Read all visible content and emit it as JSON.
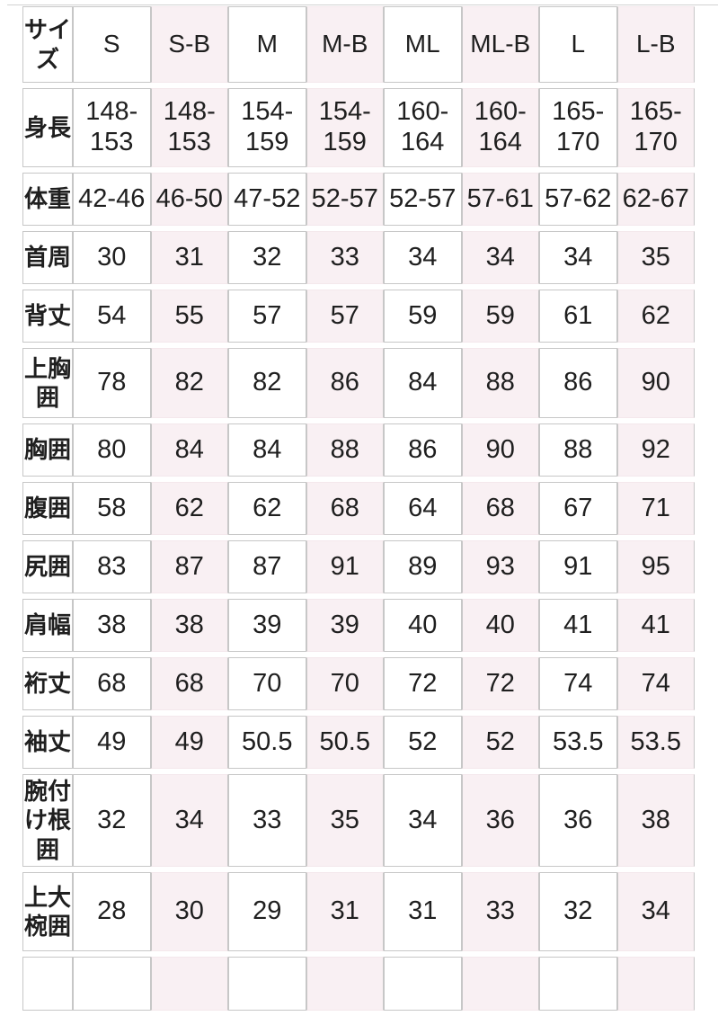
{
  "table": {
    "header": {
      "label": "サイズ",
      "sizes": [
        "S",
        "S-B",
        "M",
        "M-B",
        "ML",
        "ML-B",
        "L",
        "L-B"
      ]
    },
    "rows": [
      {
        "label": "身長",
        "values": [
          "148-153",
          "148-153",
          "154-159",
          "154-159",
          "160-164",
          "160-164",
          "165-170",
          "165-170"
        ]
      },
      {
        "label": "体重",
        "values": [
          "42-46",
          "46-50",
          "47-52",
          "52-57",
          "52-57",
          "57-61",
          "57-62",
          "62-67"
        ]
      },
      {
        "label": "首周",
        "values": [
          "30",
          "31",
          "32",
          "33",
          "34",
          "34",
          "34",
          "35"
        ]
      },
      {
        "label": "背丈",
        "values": [
          "54",
          "55",
          "57",
          "57",
          "59",
          "59",
          "61",
          "62"
        ]
      },
      {
        "label": "上胸囲",
        "values": [
          "78",
          "82",
          "82",
          "86",
          "84",
          "88",
          "86",
          "90"
        ]
      },
      {
        "label": "胸囲",
        "values": [
          "80",
          "84",
          "84",
          "88",
          "86",
          "90",
          "88",
          "92"
        ]
      },
      {
        "label": "腹囲",
        "values": [
          "58",
          "62",
          "62",
          "68",
          "64",
          "68",
          "67",
          "71"
        ]
      },
      {
        "label": "尻囲",
        "values": [
          "83",
          "87",
          "87",
          "91",
          "89",
          "93",
          "91",
          "95"
        ]
      },
      {
        "label": "肩幅",
        "values": [
          "38",
          "38",
          "39",
          "39",
          "40",
          "40",
          "41",
          "41"
        ]
      },
      {
        "label": "裄丈",
        "values": [
          "68",
          "68",
          "70",
          "70",
          "72",
          "72",
          "74",
          "74"
        ]
      },
      {
        "label": "袖丈",
        "values": [
          "49",
          "49",
          "50.5",
          "50.5",
          "52",
          "52",
          "53.5",
          "53.5"
        ]
      },
      {
        "label": "腕付け根囲",
        "values": [
          "32",
          "34",
          "33",
          "35",
          "34",
          "36",
          "36",
          "38"
        ]
      },
      {
        "label": "上大椀囲",
        "values": [
          "28",
          "30",
          "29",
          "31",
          "31",
          "33",
          "32",
          "34"
        ]
      },
      {
        "label": "",
        "values": [
          "",
          "",
          "",
          "",
          "",
          "",
          "",
          ""
        ]
      }
    ],
    "colors": {
      "pink_column_bg": "#f9f0f3",
      "cell_border": "#c7c7c7",
      "pink_cell_horizontal_border": "#f4e8ec",
      "text": "#1f1f1f",
      "page_bg": "#ffffff"
    }
  }
}
